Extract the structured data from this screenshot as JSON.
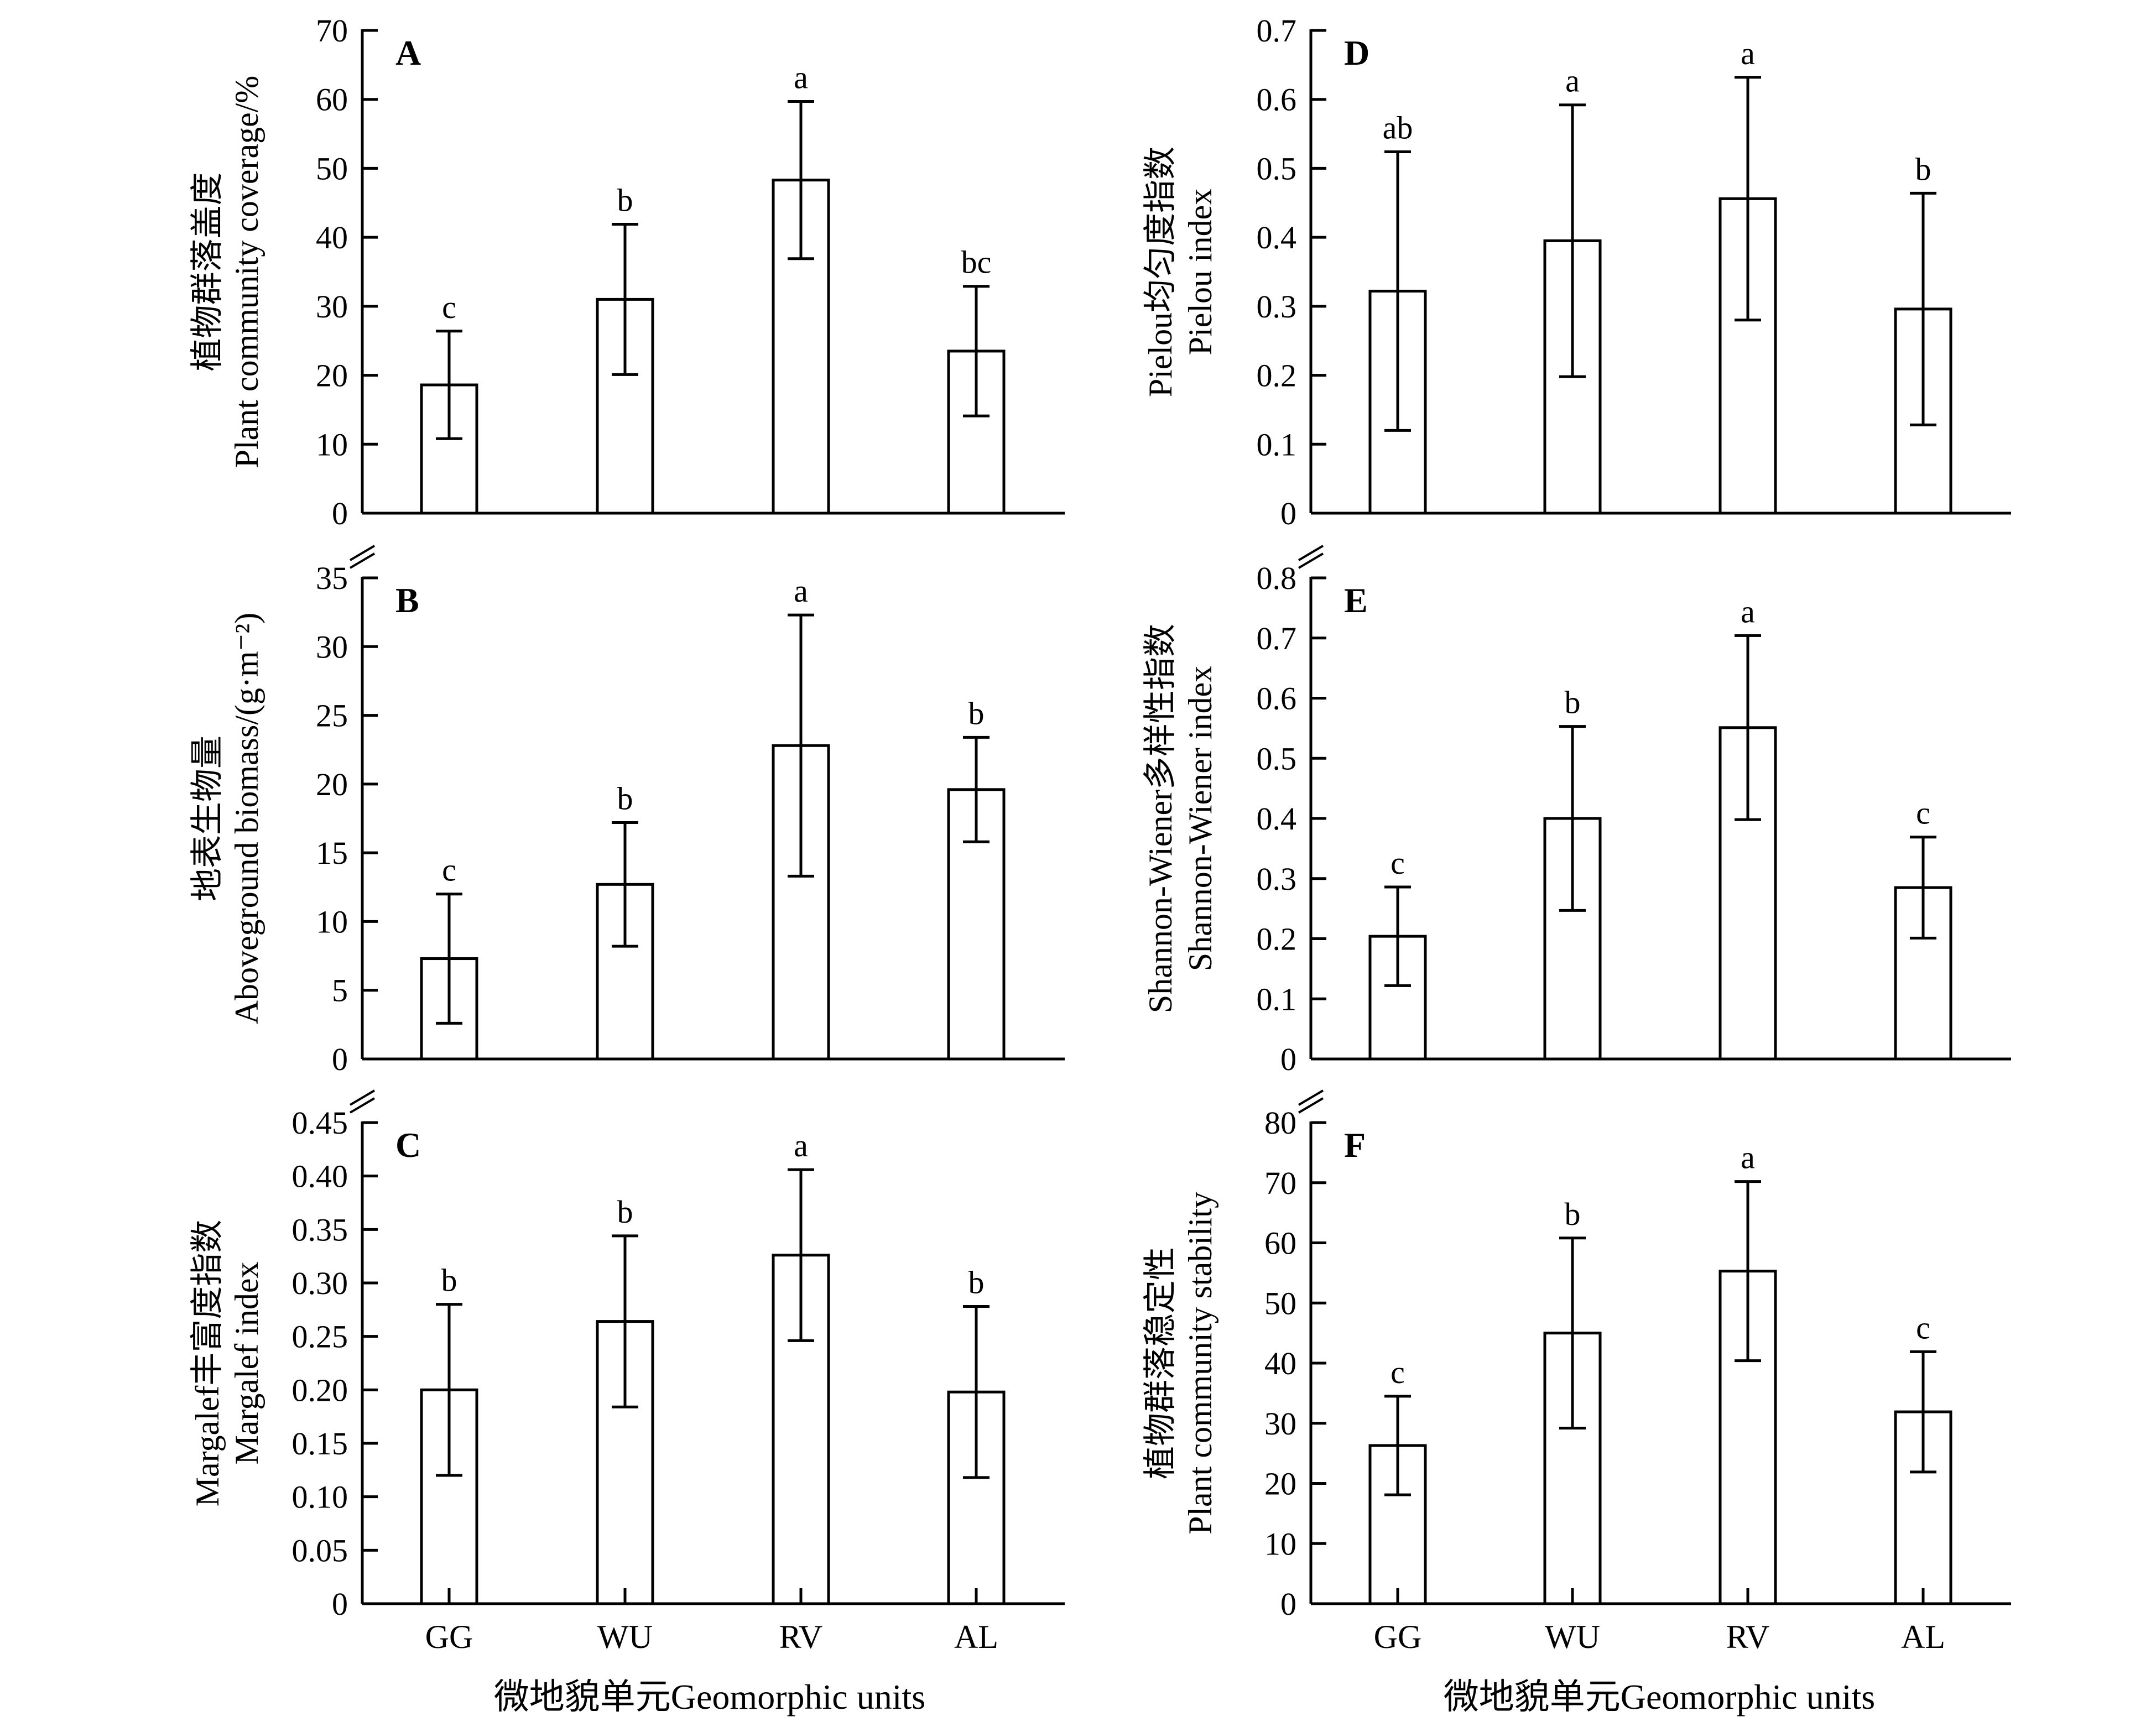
{
  "figure": {
    "xlabel": "微地貌单元Geomorphic units",
    "categories": [
      "GG",
      "WU",
      "RV",
      "AL"
    ]
  },
  "chart_data": [
    {
      "panel": "A",
      "type": "bar",
      "categories": [
        "GG",
        "WU",
        "RV",
        "AL"
      ],
      "values": [
        18.6,
        31.0,
        48.3,
        23.5
      ],
      "errors": [
        7.8,
        10.9,
        11.4,
        9.4
      ],
      "letters": [
        "c",
        "b",
        "a",
        "bc"
      ],
      "ylabel_cn": "植物群落盖度",
      "ylabel_en": "Plant community coverage/%",
      "ylim": [
        0,
        70
      ],
      "yticks": [
        0,
        10,
        20,
        30,
        40,
        50,
        60,
        70
      ],
      "ytick_labels": [
        "0",
        "10",
        "20",
        "30",
        "40",
        "50",
        "60",
        "70"
      ]
    },
    {
      "panel": "B",
      "type": "bar",
      "categories": [
        "GG",
        "WU",
        "RV",
        "AL"
      ],
      "values": [
        7.3,
        12.7,
        22.8,
        19.6
      ],
      "errors": [
        4.7,
        4.5,
        9.5,
        3.8
      ],
      "letters": [
        "c",
        "b",
        "a",
        "b"
      ],
      "ylabel_cn": "地表生物量",
      "ylabel_en": "Aboveground biomass/(g·m⁻²)",
      "ylim": [
        0,
        35
      ],
      "yticks": [
        0,
        5,
        10,
        15,
        20,
        25,
        30,
        35
      ],
      "ytick_labels": [
        "0",
        "5",
        "10",
        "15",
        "20",
        "25",
        "30",
        "35"
      ]
    },
    {
      "panel": "C",
      "type": "bar",
      "categories": [
        "GG",
        "WU",
        "RV",
        "AL"
      ],
      "values": [
        0.2,
        0.264,
        0.326,
        0.198
      ],
      "errors": [
        0.08,
        0.08,
        0.08,
        0.08
      ],
      "letters": [
        "b",
        "b",
        "a",
        "b"
      ],
      "ylabel_cn": "Margalef丰富度指数",
      "ylabel_en": "Margalef index",
      "ylim": [
        0,
        0.45
      ],
      "yticks": [
        0,
        0.05,
        0.1,
        0.15,
        0.2,
        0.25,
        0.3,
        0.35,
        0.4,
        0.45
      ],
      "ytick_labels": [
        "0",
        "0.05",
        "0.10",
        "0.15",
        "0.20",
        "0.25",
        "0.30",
        "0.35",
        "0.40",
        "0.45"
      ]
    },
    {
      "panel": "D",
      "type": "bar",
      "categories": [
        "GG",
        "WU",
        "RV",
        "AL"
      ],
      "values": [
        0.322,
        0.395,
        0.456,
        0.296
      ],
      "errors": [
        0.202,
        0.197,
        0.176,
        0.168
      ],
      "letters": [
        "ab",
        "a",
        "a",
        "b"
      ],
      "ylabel_cn": "Pielou均匀度指数",
      "ylabel_en": "Pielou index",
      "ylim": [
        0,
        0.7
      ],
      "yticks": [
        0,
        0.1,
        0.2,
        0.3,
        0.4,
        0.5,
        0.6,
        0.7
      ],
      "ytick_labels": [
        "0",
        "0.1",
        "0.2",
        "0.3",
        "0.4",
        "0.5",
        "0.6",
        "0.7"
      ]
    },
    {
      "panel": "E",
      "type": "bar",
      "categories": [
        "GG",
        "WU",
        "RV",
        "AL"
      ],
      "values": [
        0.204,
        0.4,
        0.551,
        0.285
      ],
      "errors": [
        0.082,
        0.153,
        0.153,
        0.084
      ],
      "letters": [
        "c",
        "b",
        "a",
        "c"
      ],
      "ylabel_cn": "Shannon-Wiener多样性指数",
      "ylabel_en": "Shannon-Wiener index",
      "ylim": [
        0,
        0.8
      ],
      "yticks": [
        0,
        0.1,
        0.2,
        0.3,
        0.4,
        0.5,
        0.6,
        0.7,
        0.8
      ],
      "ytick_labels": [
        "0",
        "0.1",
        "0.2",
        "0.3",
        "0.4",
        "0.5",
        "0.6",
        "0.7",
        "0.8"
      ]
    },
    {
      "panel": "F",
      "type": "bar",
      "categories": [
        "GG",
        "WU",
        "RV",
        "AL"
      ],
      "values": [
        26.3,
        45.0,
        55.3,
        31.9
      ],
      "errors": [
        8.2,
        15.8,
        14.9,
        10.0
      ],
      "letters": [
        "c",
        "b",
        "a",
        "c"
      ],
      "ylabel_cn": "植物群落稳定性",
      "ylabel_en": "Plant community stability",
      "ylim": [
        0,
        80
      ],
      "yticks": [
        0,
        10,
        20,
        30,
        40,
        50,
        60,
        70,
        80
      ],
      "ytick_labels": [
        "0",
        "10",
        "20",
        "30",
        "40",
        "50",
        "60",
        "70",
        "80"
      ]
    }
  ]
}
